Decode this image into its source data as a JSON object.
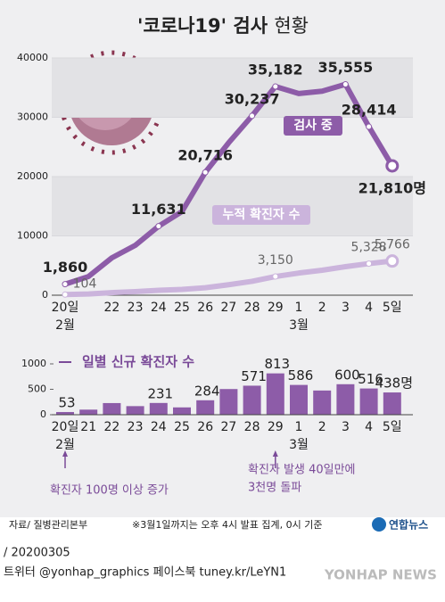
{
  "header": {
    "title": "'코로나19' 검사",
    "title_light": "현황"
  },
  "chart_data": [
    {
      "type": "line",
      "categories": [
        "20일",
        null,
        "22",
        "23",
        "24",
        "25",
        "26",
        "27",
        "28",
        "29",
        "1",
        "2",
        "3",
        "4",
        "5일"
      ],
      "month_labels": [
        "2월",
        null,
        null,
        null,
        null,
        null,
        null,
        null,
        null,
        null,
        "3월",
        null,
        null,
        null,
        null
      ],
      "series": [
        {
          "name": "검사 중",
          "color": "#8d5ca8",
          "values": [
            1860,
            3150,
            6300,
            8400,
            11631,
            14100,
            20716,
            25700,
            30237,
            35182,
            34000,
            34400,
            35555,
            28414,
            21810
          ],
          "value_labels": [
            "1,860",
            null,
            null,
            null,
            "11,631",
            null,
            "20,716",
            null,
            "30,237",
            "35,182",
            null,
            null,
            "35,555",
            "28,414",
            "21,810명"
          ]
        },
        {
          "name": "누적 확진자 수",
          "color": "#cbb4dc",
          "values": [
            104,
            204,
            433,
            602,
            833,
            977,
            1261,
            1766,
            2337,
            3150,
            3736,
            4212,
            4812,
            5328,
            5766
          ],
          "value_labels": [
            "104",
            null,
            null,
            null,
            null,
            null,
            null,
            null,
            null,
            "3,150",
            null,
            null,
            null,
            "5,328",
            "5,766"
          ]
        }
      ],
      "ylim": [
        0,
        40000
      ],
      "yticks": [
        0,
        10000,
        20000,
        30000,
        40000
      ],
      "grid": true
    },
    {
      "type": "bar",
      "title": "일별 신규 확진자 수",
      "categories": [
        "20일",
        "21",
        "22",
        "23",
        "24",
        "25",
        "26",
        "27",
        "28",
        "29",
        "1",
        "2",
        "3",
        "4",
        "5일"
      ],
      "month_labels": [
        "2월",
        null,
        null,
        null,
        null,
        null,
        null,
        null,
        null,
        null,
        "3월",
        null,
        null,
        null,
        null
      ],
      "values": [
        53,
        100,
        229,
        169,
        231,
        144,
        284,
        505,
        571,
        813,
        586,
        476,
        600,
        516,
        438
      ],
      "value_labels": [
        "53",
        null,
        null,
        null,
        "231",
        null,
        "284",
        null,
        "571",
        "813",
        "586",
        null,
        "600",
        "516",
        "438명"
      ],
      "color": "#8d5ca8",
      "ylim": [
        0,
        1000
      ],
      "yticks": [
        0,
        500,
        1000
      ],
      "annotations": [
        {
          "lines": [
            "확진자 100명 이상 증가"
          ]
        },
        {
          "lines": [
            "확진자 발생 40일만에",
            "3천명 돌파"
          ]
        }
      ]
    }
  ],
  "footer": {
    "source": "자료/ 질병관리본부",
    "note": "※3월1일까지는 오후 4시 발표 집계, 0시 기준",
    "logo": "연합뉴스",
    "date": "/ 20200305",
    "social": "트위터 @yonhap_graphics  페이스북 tuney.kr/LeYN1",
    "watermark": "YONHAP NEWS"
  }
}
